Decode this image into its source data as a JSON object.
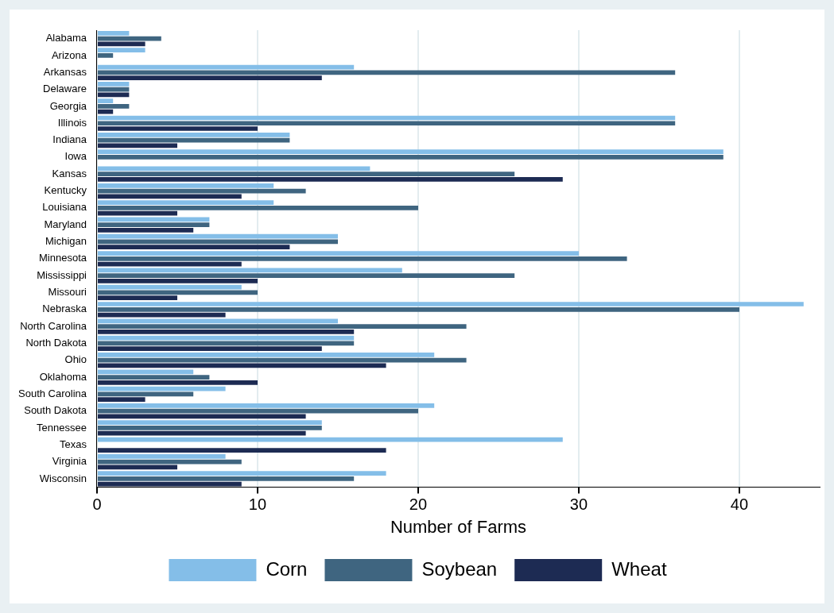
{
  "chart_data": {
    "type": "bar",
    "orientation": "horizontal",
    "xlabel": "Number of Farms",
    "categories": [
      "Alabama",
      "Arizona",
      "Arkansas",
      "Delaware",
      "Georgia",
      "Illinois",
      "Indiana",
      "Iowa",
      "Kansas",
      "Kentucky",
      "Louisiana",
      "Maryland",
      "Michigan",
      "Minnesota",
      "Mississippi",
      "Missouri",
      "Nebraska",
      "North Carolina",
      "North Dakota",
      "Ohio",
      "Oklahoma",
      "South Carolina",
      "South Dakota",
      "Tennessee",
      "Texas",
      "Virginia",
      "Wisconsin"
    ],
    "series": [
      {
        "name": "Corn",
        "color": "#84bee8",
        "values": [
          2,
          3,
          16,
          2,
          1,
          36,
          12,
          39,
          17,
          11,
          11,
          7,
          15,
          30,
          19,
          9,
          44,
          15,
          16,
          21,
          6,
          8,
          21,
          14,
          29,
          8,
          18
        ]
      },
      {
        "name": "Soybean",
        "color": "#3f6580",
        "values": [
          4,
          1,
          36,
          2,
          2,
          36,
          12,
          39,
          26,
          13,
          20,
          7,
          15,
          33,
          26,
          10,
          40,
          23,
          16,
          23,
          7,
          6,
          20,
          14,
          null,
          9,
          16
        ]
      },
      {
        "name": "Wheat",
        "color": "#1d2b53",
        "values": [
          3,
          null,
          14,
          2,
          1,
          10,
          5,
          null,
          29,
          9,
          5,
          6,
          12,
          9,
          10,
          5,
          8,
          16,
          14,
          18,
          10,
          3,
          13,
          13,
          18,
          5,
          9
        ]
      }
    ],
    "xlim": [
      0,
      45
    ],
    "xticks": [
      0,
      10,
      20,
      30,
      40
    ],
    "grid": "x",
    "legend": "bottom"
  }
}
